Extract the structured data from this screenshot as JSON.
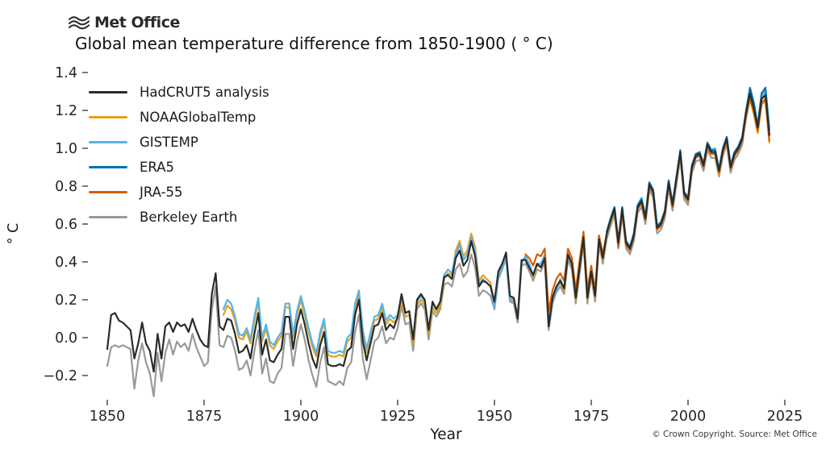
{
  "header": {
    "logo_text": "Met Office",
    "logo_icon": "met-office-waves-icon"
  },
  "title": "Global mean temperature difference from 1850-1900 ( ° C)",
  "footer": {
    "credit": "© Crown Copyright. Source: Met Office"
  },
  "chart_data": {
    "type": "line",
    "title": "Global mean temperature difference from 1850-1900 ( ° C)",
    "xlabel": "Year",
    "ylabel": "° C",
    "xlim": [
      1845,
      2030
    ],
    "ylim": [
      -0.33,
      1.45
    ],
    "x_ticks": [
      1850,
      1875,
      1900,
      1925,
      1950,
      1975,
      2000,
      2025
    ],
    "y_ticks": [
      -0.2,
      0.0,
      0.2,
      0.4,
      0.6,
      0.8,
      1.0,
      1.2,
      1.4
    ],
    "y_tick_labels": [
      "−0.2",
      "0.0",
      "0.2",
      "0.4",
      "0.6",
      "0.8",
      "1.0",
      "1.2",
      "1.4"
    ],
    "grid": false,
    "legend_position": "upper-left",
    "draw_order": [
      5,
      1,
      2,
      4,
      3,
      0
    ],
    "series": [
      {
        "name": "HadCRUT5 analysis",
        "color": "#2b2b2b",
        "start_year": 1850,
        "values": [
          -0.06,
          0.12,
          0.13,
          0.09,
          0.08,
          0.06,
          0.04,
          -0.11,
          -0.03,
          0.08,
          -0.03,
          -0.07,
          -0.18,
          0.02,
          -0.11,
          0.06,
          0.08,
          0.03,
          0.08,
          0.06,
          0.07,
          0.03,
          0.1,
          0.04,
          -0.01,
          -0.04,
          -0.05,
          0.23,
          0.34,
          0.06,
          0.04,
          0.1,
          0.09,
          0.02,
          -0.08,
          -0.07,
          -0.04,
          -0.11,
          0.02,
          0.13,
          -0.09,
          -0.01,
          -0.12,
          -0.13,
          -0.09,
          -0.06,
          0.11,
          0.11,
          -0.06,
          0.07,
          0.15,
          0.07,
          -0.03,
          -0.11,
          -0.16,
          -0.04,
          0.03,
          -0.14,
          -0.15,
          -0.15,
          -0.14,
          -0.15,
          -0.07,
          -0.05,
          0.12,
          0.2,
          -0.02,
          -0.12,
          -0.03,
          0.06,
          0.07,
          0.13,
          0.04,
          0.07,
          0.05,
          0.11,
          0.23,
          0.13,
          0.14,
          -0.01,
          0.2,
          0.23,
          0.2,
          0.04,
          0.19,
          0.15,
          0.19,
          0.32,
          0.33,
          0.31,
          0.42,
          0.46,
          0.38,
          0.41,
          0.51,
          0.43,
          0.27,
          0.3,
          0.29,
          0.27,
          0.19,
          0.35,
          0.39,
          0.45,
          0.22,
          0.21,
          0.1,
          0.41,
          0.41,
          0.37,
          0.33,
          0.39,
          0.37,
          0.42,
          0.06,
          0.21,
          0.27,
          0.3,
          0.26,
          0.44,
          0.39,
          0.21,
          0.37,
          0.53,
          0.21,
          0.35,
          0.22,
          0.52,
          0.42,
          0.55,
          0.62,
          0.68,
          0.5,
          0.68,
          0.5,
          0.47,
          0.54,
          0.69,
          0.72,
          0.63,
          0.81,
          0.77,
          0.58,
          0.6,
          0.66,
          0.82,
          0.7,
          0.84,
          0.98,
          0.76,
          0.73,
          0.9,
          0.96,
          0.97,
          0.91,
          1.02,
          0.98,
          0.98,
          0.88,
          0.99,
          1.05,
          0.9,
          0.97,
          1.0,
          1.05,
          1.19,
          1.29,
          1.21,
          1.11,
          1.26,
          1.28,
          1.07
        ]
      },
      {
        "name": "NOAAGlobalTemp",
        "color": "#e6a019",
        "start_year": 1880,
        "values": [
          0.12,
          0.17,
          0.15,
          0.09,
          0.0,
          -0.01,
          0.03,
          -0.03,
          0.09,
          0.19,
          -0.02,
          0.05,
          -0.04,
          -0.06,
          -0.02,
          0.01,
          0.16,
          0.16,
          0.0,
          0.12,
          0.2,
          0.12,
          0.03,
          -0.05,
          -0.1,
          0.01,
          0.08,
          -0.09,
          -0.1,
          -0.1,
          -0.09,
          -0.1,
          -0.02,
          0.0,
          0.16,
          0.23,
          0.02,
          -0.08,
          0.01,
          0.09,
          0.1,
          0.16,
          0.07,
          0.1,
          0.08,
          0.1,
          0.2,
          0.11,
          0.12,
          -0.03,
          0.17,
          0.2,
          0.17,
          0.02,
          0.16,
          0.13,
          0.17,
          0.31,
          0.34,
          0.33,
          0.46,
          0.51,
          0.43,
          0.46,
          0.55,
          0.48,
          0.3,
          0.33,
          0.31,
          0.29,
          0.17,
          0.33,
          0.38,
          0.44,
          0.21,
          0.2,
          0.12,
          0.4,
          0.42,
          0.38,
          0.32,
          0.38,
          0.38,
          0.43,
          0.08,
          0.2,
          0.26,
          0.29,
          0.25,
          0.43,
          0.38,
          0.2,
          0.36,
          0.52,
          0.2,
          0.34,
          0.21,
          0.51,
          0.41,
          0.54,
          0.61,
          0.67,
          0.49,
          0.67,
          0.49,
          0.46,
          0.53,
          0.68,
          0.71,
          0.62,
          0.8,
          0.76,
          0.57,
          0.59,
          0.65,
          0.81,
          0.69,
          0.83,
          0.97,
          0.75,
          0.72,
          0.89,
          0.95,
          0.96,
          0.9,
          1.01,
          0.97,
          0.97,
          0.86,
          0.98,
          1.04,
          0.89,
          0.96,
          0.99,
          1.04,
          1.16,
          1.26,
          1.18,
          1.08,
          1.23,
          1.25,
          1.03
        ]
      },
      {
        "name": "GISTEMP",
        "color": "#56b4e9",
        "start_year": 1880,
        "values": [
          0.15,
          0.2,
          0.18,
          0.11,
          0.02,
          0.01,
          0.05,
          -0.01,
          0.11,
          0.21,
          0.0,
          0.07,
          -0.02,
          -0.04,
          0.0,
          0.03,
          0.18,
          0.18,
          0.02,
          0.14,
          0.22,
          0.14,
          0.05,
          -0.03,
          -0.08,
          0.03,
          0.1,
          -0.07,
          -0.08,
          -0.08,
          -0.07,
          -0.08,
          0.0,
          0.02,
          0.18,
          0.25,
          0.04,
          -0.06,
          0.03,
          0.11,
          0.12,
          0.18,
          0.09,
          0.12,
          0.1,
          0.12,
          0.22,
          0.13,
          0.14,
          -0.01,
          0.19,
          0.22,
          0.19,
          0.04,
          0.18,
          0.15,
          0.19,
          0.33,
          0.36,
          0.34,
          0.44,
          0.49,
          0.41,
          0.44,
          0.53,
          0.46,
          0.28,
          0.31,
          0.29,
          0.27,
          0.16,
          0.32,
          0.37,
          0.43,
          0.2,
          0.19,
          0.11,
          0.39,
          0.43,
          0.39,
          0.33,
          0.39,
          0.39,
          0.44,
          0.09,
          0.19,
          0.25,
          0.31,
          0.26,
          0.42,
          0.39,
          0.22,
          0.37,
          0.53,
          0.22,
          0.35,
          0.23,
          0.52,
          0.43,
          0.54,
          0.63,
          0.69,
          0.5,
          0.68,
          0.51,
          0.48,
          0.55,
          0.7,
          0.74,
          0.64,
          0.82,
          0.78,
          0.59,
          0.61,
          0.67,
          0.82,
          0.7,
          0.84,
          0.97,
          0.76,
          0.74,
          0.91,
          0.97,
          0.97,
          0.91,
          1.03,
          0.99,
          1.0,
          0.88,
          1.0,
          1.06,
          0.91,
          0.98,
          1.01,
          1.06,
          1.2,
          1.3,
          1.22,
          1.11,
          1.28,
          1.3,
          1.07
        ]
      },
      {
        "name": "ERA5",
        "color": "#0072b2",
        "start_year": 1979,
        "values": [
          0.56,
          0.63,
          0.69,
          0.51,
          0.69,
          0.51,
          0.48,
          0.55,
          0.7,
          0.73,
          0.64,
          0.82,
          0.78,
          0.59,
          0.61,
          0.67,
          0.83,
          0.71,
          0.85,
          0.99,
          0.77,
          0.74,
          0.91,
          0.97,
          0.98,
          0.92,
          1.03,
          0.99,
          0.99,
          0.89,
          1.0,
          1.06,
          0.91,
          0.98,
          1.01,
          1.06,
          1.2,
          1.32,
          1.24,
          1.12,
          1.29,
          1.32,
          1.1
        ]
      },
      {
        "name": "JRA-55",
        "color": "#d55e00",
        "start_year": 1958,
        "values": [
          0.44,
          0.42,
          0.38,
          0.44,
          0.43,
          0.47,
          0.14,
          0.25,
          0.31,
          0.34,
          0.3,
          0.47,
          0.42,
          0.25,
          0.41,
          0.56,
          0.25,
          0.38,
          0.25,
          0.54,
          0.44,
          0.55,
          0.62,
          0.67,
          0.48,
          0.67,
          0.49,
          0.46,
          0.53,
          0.68,
          0.71,
          0.62,
          0.8,
          0.76,
          0.57,
          0.59,
          0.65,
          0.81,
          0.69,
          0.83,
          0.97,
          0.75,
          0.72,
          0.89,
          0.95,
          0.96,
          0.9,
          1.01,
          0.97,
          0.97,
          0.87,
          0.98,
          1.04,
          0.89,
          0.96,
          0.99,
          1.04,
          1.17,
          1.27,
          1.19,
          1.09,
          1.24,
          1.26,
          1.04
        ]
      },
      {
        "name": "Berkeley Earth",
        "color": "#999999",
        "start_year": 1850,
        "values": [
          -0.15,
          -0.05,
          -0.04,
          -0.05,
          -0.04,
          -0.05,
          -0.06,
          -0.27,
          -0.12,
          -0.03,
          -0.13,
          -0.19,
          -0.31,
          -0.08,
          -0.23,
          -0.08,
          -0.01,
          -0.09,
          -0.02,
          -0.05,
          -0.03,
          -0.07,
          0.02,
          -0.05,
          -0.1,
          -0.15,
          -0.13,
          0.15,
          0.27,
          -0.04,
          -0.05,
          0.01,
          0.0,
          -0.07,
          -0.17,
          -0.16,
          -0.12,
          -0.2,
          -0.07,
          0.04,
          -0.19,
          -0.11,
          -0.23,
          -0.24,
          -0.19,
          -0.16,
          0.02,
          0.02,
          -0.15,
          -0.02,
          0.07,
          -0.01,
          -0.12,
          -0.2,
          -0.26,
          -0.13,
          -0.05,
          -0.23,
          -0.24,
          -0.25,
          -0.23,
          -0.25,
          -0.16,
          -0.13,
          0.03,
          0.12,
          -0.11,
          -0.22,
          -0.12,
          -0.02,
          0.0,
          0.06,
          -0.03,
          0.0,
          -0.01,
          0.05,
          0.17,
          0.07,
          0.08,
          -0.07,
          0.15,
          0.18,
          0.15,
          -0.01,
          0.14,
          0.11,
          0.15,
          0.28,
          0.29,
          0.27,
          0.36,
          0.39,
          0.32,
          0.35,
          0.44,
          0.37,
          0.22,
          0.25,
          0.24,
          0.22,
          0.15,
          0.31,
          0.36,
          0.42,
          0.19,
          0.18,
          0.08,
          0.38,
          0.39,
          0.35,
          0.3,
          0.36,
          0.35,
          0.4,
          0.04,
          0.18,
          0.24,
          0.27,
          0.23,
          0.41,
          0.36,
          0.18,
          0.34,
          0.5,
          0.18,
          0.32,
          0.19,
          0.49,
          0.39,
          0.52,
          0.59,
          0.65,
          0.47,
          0.65,
          0.47,
          0.44,
          0.51,
          0.66,
          0.69,
          0.6,
          0.78,
          0.74,
          0.55,
          0.57,
          0.63,
          0.79,
          0.67,
          0.81,
          0.95,
          0.73,
          0.7,
          0.87,
          0.93,
          0.94,
          0.88,
          0.99,
          0.95,
          0.95,
          0.85,
          0.96,
          1.02,
          0.87,
          0.94,
          0.97,
          1.02,
          1.17,
          1.3,
          1.22,
          1.1,
          1.27,
          1.3,
          1.07
        ]
      }
    ]
  }
}
